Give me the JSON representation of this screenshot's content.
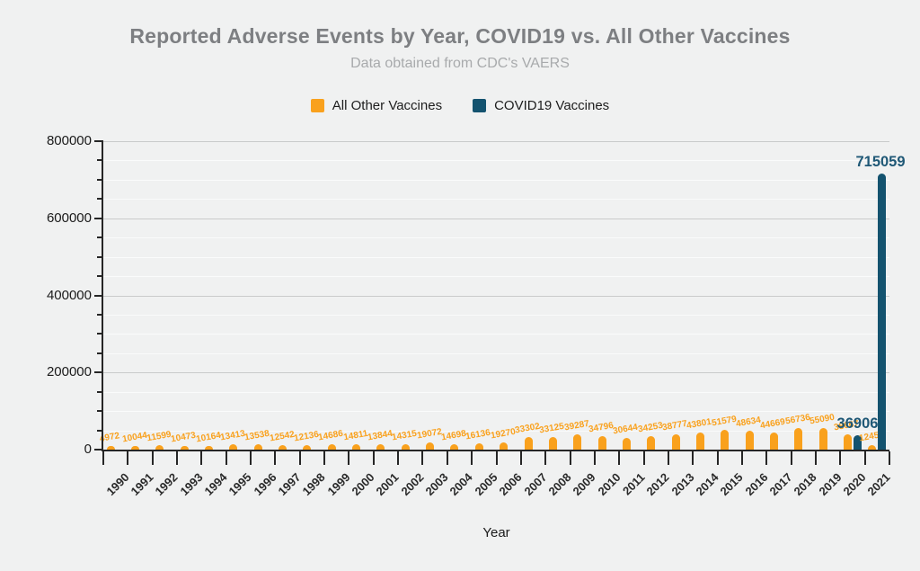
{
  "colors": {
    "background": "#f0f1f1",
    "title": "#7d7f82",
    "subtitle": "#a8aaac",
    "axis": "#262626",
    "other_vaccines": "#F9A11D",
    "covid_vaccines": "#14536F",
    "covid_label": "#1F5876",
    "grid_minor": "#fafbfb",
    "grid_major": "#c9cbcb"
  },
  "chart_data": {
    "type": "bar",
    "title": "Reported Adverse Events by Year, COVID19 vs. All Other Vaccines",
    "subtitle": "Data obtained from CDC's VAERS",
    "xlabel": "Year",
    "ylabel": "",
    "ylim": [
      0,
      800000
    ],
    "yticks": [
      0,
      200000,
      400000,
      600000,
      800000
    ],
    "y_minor_step": 50000,
    "grid": "horizontal",
    "legend_position": "top",
    "categories": [
      "1990",
      "1991",
      "1992",
      "1993",
      "1994",
      "1995",
      "1996",
      "1997",
      "1998",
      "1999",
      "2000",
      "2001",
      "2002",
      "2003",
      "2004",
      "2005",
      "2006",
      "2007",
      "2008",
      "2009",
      "2010",
      "2011",
      "2012",
      "2013",
      "2014",
      "2015",
      "2016",
      "2017",
      "2018",
      "2019",
      "2020",
      "2021"
    ],
    "series": [
      {
        "name": "All Other Vaccines",
        "color": "#F9A11D",
        "values": [
          4972,
          10044,
          11599,
          10473,
          10164,
          13413,
          13538,
          12542,
          12136,
          14686,
          14811,
          13844,
          14315,
          19072,
          14698,
          16136,
          19270,
          33302,
          33125,
          39287,
          34796,
          30644,
          34253,
          38777,
          43801,
          51579,
          48634,
          44669,
          56736,
          55090,
          38667,
          12454
        ]
      },
      {
        "name": "COVID19 Vaccines",
        "color": "#14536F",
        "values": [
          0,
          0,
          0,
          0,
          0,
          0,
          0,
          0,
          0,
          0,
          0,
          0,
          0,
          0,
          0,
          0,
          0,
          0,
          0,
          0,
          0,
          0,
          0,
          0,
          0,
          0,
          0,
          0,
          0,
          0,
          36906,
          715059
        ]
      }
    ]
  }
}
